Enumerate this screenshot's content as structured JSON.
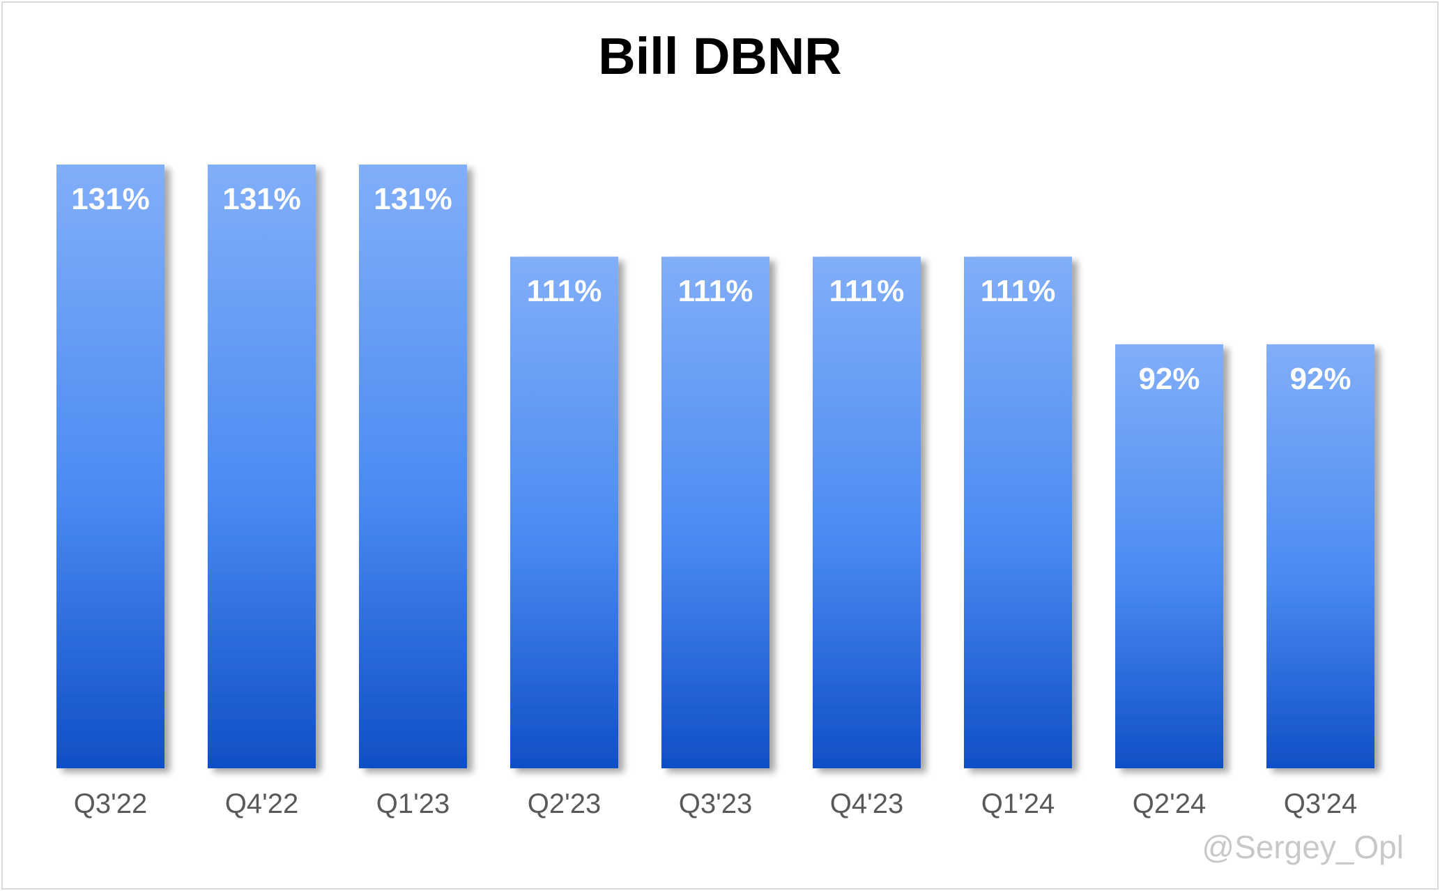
{
  "chart_data": {
    "type": "bar",
    "title": "Bill DBNR",
    "xlabel": "",
    "ylabel": "",
    "categories": [
      "Q3'22",
      "Q4'22",
      "Q1'23",
      "Q2'23",
      "Q3'23",
      "Q4'23",
      "Q1'24",
      "Q2'24",
      "Q3'24"
    ],
    "values": [
      131,
      131,
      131,
      111,
      111,
      111,
      111,
      92,
      92
    ],
    "data_labels": [
      "131%",
      "131%",
      "131%",
      "111%",
      "111%",
      "111%",
      "111%",
      "92%",
      "92%"
    ],
    "value_unit": "%",
    "ylim": [
      0,
      131
    ],
    "grid": false,
    "legend": "none",
    "y_axis_visible": false
  },
  "watermark": "@Sergey_Opl",
  "colors": {
    "bar_top": "#82AEF8",
    "bar_mid": "#4A8BF2",
    "bar_bottom": "#0F4FC6",
    "data_label": "#ffffff",
    "tick_label": "#595959",
    "title": "#000000",
    "watermark": "#c8c8c8"
  }
}
